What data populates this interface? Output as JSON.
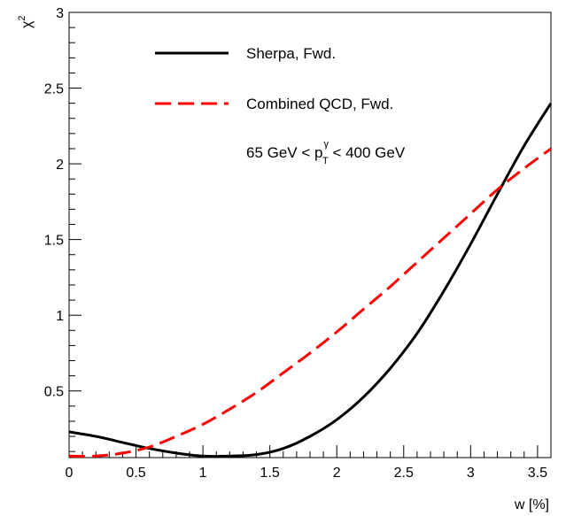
{
  "chart_data": {
    "type": "line",
    "xlabel": "w [%]",
    "ylabel_base": "χ",
    "ylabel_sup": "2",
    "xlim": [
      0,
      3.6
    ],
    "ylim": [
      0.06,
      3
    ],
    "x_ticks": [
      0,
      0.5,
      1,
      1.5,
      2,
      2.5,
      3,
      3.5
    ],
    "x_tick_labels": [
      "0",
      "0.5",
      "1",
      "1.5",
      "2",
      "2.5",
      "3",
      "3.5"
    ],
    "y_ticks": [
      0.5,
      1,
      1.5,
      2,
      2.5,
      3
    ],
    "y_tick_labels": [
      "0.5",
      "1",
      "1.5",
      "2",
      "2.5",
      "3"
    ],
    "series": [
      {
        "name": "Sherpa, Fwd.",
        "color": "#000000",
        "dash": "solid",
        "x": [
          0,
          0.2,
          0.4,
          0.6,
          0.8,
          1.0,
          1.2,
          1.4,
          1.6,
          1.8,
          2.0,
          2.2,
          2.4,
          2.6,
          2.8,
          3.0,
          3.2,
          3.4,
          3.6
        ],
        "y": [
          0.23,
          0.2,
          0.16,
          0.12,
          0.09,
          0.07,
          0.07,
          0.08,
          0.12,
          0.2,
          0.31,
          0.46,
          0.65,
          0.88,
          1.16,
          1.47,
          1.8,
          2.12,
          2.4
        ]
      },
      {
        "name": "Combined QCD, Fwd.",
        "color": "#ff0000",
        "dash": "dashed",
        "x": [
          0,
          0.2,
          0.4,
          0.6,
          0.8,
          1.0,
          1.2,
          1.4,
          1.6,
          1.8,
          2.0,
          2.2,
          2.4,
          2.6,
          2.8,
          3.0,
          3.2,
          3.4,
          3.6
        ],
        "y": [
          0.07,
          0.07,
          0.09,
          0.13,
          0.2,
          0.28,
          0.38,
          0.49,
          0.62,
          0.75,
          0.89,
          1.04,
          1.19,
          1.35,
          1.51,
          1.67,
          1.83,
          1.97,
          2.1
        ]
      }
    ],
    "annotation": {
      "prefix": "65 GeV < p",
      "sub": "T",
      "sup": "γ",
      "suffix": " < 400 GeV"
    }
  }
}
